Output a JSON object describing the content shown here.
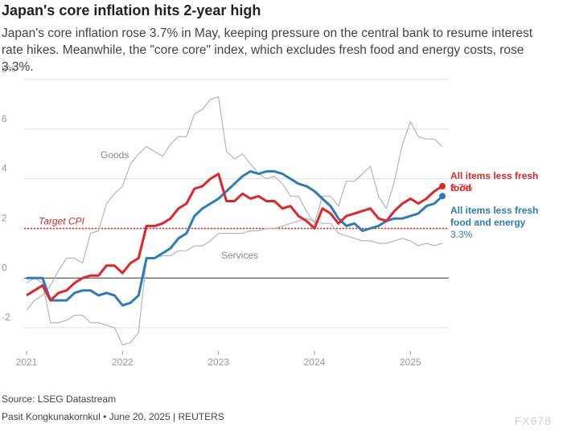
{
  "chart_data": {
    "type": "line",
    "title": "Japan's core inflation hits 2-year high",
    "subtitle": "Japan's core inflation rose 3.7% in May, keeping pressure on the central bank to resume interest rate hikes. Meanwhile, the \"core core\" index, which excludes fresh food and energy costs, rose 3.3%.",
    "source": "Source: LSEG Datastream",
    "byline": "Pasit Kongkunakornkul • June 20, 2025 | REUTERS",
    "watermark": "FX678",
    "x": [
      2021,
      2021.083,
      2021.167,
      2021.25,
      2021.333,
      2021.417,
      2021.5,
      2021.583,
      2021.667,
      2021.75,
      2021.833,
      2021.917,
      2022,
      2022.083,
      2022.167,
      2022.25,
      2022.333,
      2022.417,
      2022.5,
      2022.583,
      2022.667,
      2022.75,
      2022.833,
      2022.917,
      2023,
      2023.083,
      2023.167,
      2023.25,
      2023.333,
      2023.417,
      2023.5,
      2023.583,
      2023.667,
      2023.75,
      2023.833,
      2023.917,
      2024,
      2024.083,
      2024.167,
      2024.25,
      2024.333,
      2024.417,
      2024.5,
      2024.583,
      2024.667,
      2024.75,
      2024.833,
      2024.917,
      2025,
      2025.083,
      2025.167,
      2025.25,
      2025.333
    ],
    "xlim": [
      2021,
      2025.45
    ],
    "xticks": [
      2021,
      2022,
      2023,
      2024,
      2025
    ],
    "ylim": [
      -3,
      8
    ],
    "yticks": [
      {
        "value": 8,
        "label": "8%"
      },
      6,
      4,
      2,
      0,
      -2
    ],
    "grid": true,
    "target": {
      "label": "Target CPI",
      "value": 2,
      "color": "#e0262b"
    },
    "series": [
      {
        "name": "Goods",
        "color": "#b5b5b5",
        "width": 1.2,
        "values": [
          -1.3,
          -0.9,
          -0.7,
          -0.3,
          0.3,
          0.8,
          0.8,
          0.6,
          1.8,
          1.9,
          3.0,
          3.4,
          3.7,
          4.6,
          5.0,
          5.3,
          5.1,
          4.9,
          5.4,
          5.7,
          5.7,
          6.6,
          6.8,
          7.2,
          7.3,
          5.1,
          4.8,
          5.0,
          4.6,
          4.2,
          4.0,
          4.1,
          3.8,
          3.3,
          3.3,
          2.7,
          2.2,
          3.3,
          3.3,
          2.9,
          3.9,
          3.9,
          4.2,
          4.5,
          3.3,
          2.8,
          3.9,
          5.4,
          6.3,
          5.7,
          5.6,
          5.6,
          5.3
        ]
      },
      {
        "name": "Services",
        "color": "#b5b5b5",
        "width": 1.2,
        "values": [
          -0.2,
          0,
          -0.2,
          -1.8,
          -1.8,
          -1.7,
          -1.5,
          -1.5,
          -1.8,
          -1.8,
          -1.9,
          -2.0,
          -2.7,
          -2.6,
          -2.2,
          0.8,
          0.8,
          0.9,
          0.9,
          1.1,
          1.1,
          1.3,
          1.3,
          1.5,
          1.8,
          1.8,
          1.8,
          1.8,
          1.9,
          1.9,
          2.0,
          2.0,
          2.1,
          2.2,
          2.3,
          2.4,
          2.3,
          2.2,
          2.2,
          1.8,
          1.7,
          1.6,
          1.5,
          1.5,
          1.4,
          1.4,
          1.5,
          1.6,
          1.5,
          1.3,
          1.4,
          1.3,
          1.4
        ]
      },
      {
        "name": "All items less fresh food and energy",
        "color": "#2f7bb8",
        "width": 3,
        "values": [
          0,
          0,
          0,
          -0.9,
          -0.9,
          -0.9,
          -0.6,
          -0.5,
          -0.5,
          -0.7,
          -0.6,
          -0.7,
          -1.1,
          -1.0,
          -0.7,
          0.8,
          0.8,
          1.0,
          1.2,
          1.6,
          1.8,
          2.5,
          2.8,
          3.0,
          3.2,
          3.5,
          3.8,
          4.1,
          4.3,
          4.2,
          4.3,
          4.3,
          4.2,
          4.0,
          3.8,
          3.7,
          3.5,
          3.2,
          2.9,
          2.4,
          2.1,
          2.2,
          1.9,
          2.0,
          2.1,
          2.3,
          2.4,
          2.4,
          2.5,
          2.6,
          2.9,
          3.0,
          3.3
        ],
        "value_labels": [
          null,
          null,
          null,
          null,
          null,
          null,
          null,
          null,
          null,
          null,
          null,
          null,
          null,
          null,
          null,
          null,
          null,
          null,
          null,
          null,
          null,
          null,
          null,
          null,
          null,
          null,
          null,
          null,
          null,
          null,
          null,
          null,
          null,
          null,
          null,
          null,
          null,
          null,
          null,
          null,
          null,
          null,
          null,
          null,
          null,
          null,
          null,
          null,
          null,
          null,
          null,
          null,
          "3.3%"
        ]
      },
      {
        "name": "All items less fresh food",
        "color": "#e0262b",
        "width": 3,
        "values": [
          -0.7,
          -0.5,
          -0.3,
          -0.9,
          -0.6,
          -0.5,
          -0.2,
          0,
          0.1,
          0.1,
          0.5,
          0.5,
          0.2,
          0.6,
          0.8,
          2.1,
          2.1,
          2.2,
          2.4,
          2.8,
          3.0,
          3.6,
          3.7,
          4.0,
          4.2,
          3.1,
          3.1,
          3.4,
          3.2,
          3.3,
          3.1,
          3.1,
          2.8,
          2.9,
          2.5,
          2.3,
          2.0,
          2.8,
          2.6,
          2.2,
          2.5,
          2.6,
          2.7,
          2.8,
          2.4,
          2.3,
          2.7,
          3.0,
          3.2,
          3.0,
          3.2,
          3.5,
          3.7
        ],
        "value_labels": [
          null,
          null,
          null,
          null,
          null,
          null,
          null,
          null,
          null,
          null,
          null,
          null,
          null,
          null,
          null,
          null,
          null,
          null,
          null,
          null,
          null,
          null,
          null,
          null,
          null,
          null,
          null,
          null,
          null,
          null,
          null,
          null,
          null,
          null,
          null,
          null,
          null,
          null,
          null,
          null,
          null,
          null,
          null,
          null,
          null,
          null,
          null,
          null,
          null,
          null,
          null,
          null,
          "3.7%"
        ]
      }
    ]
  }
}
